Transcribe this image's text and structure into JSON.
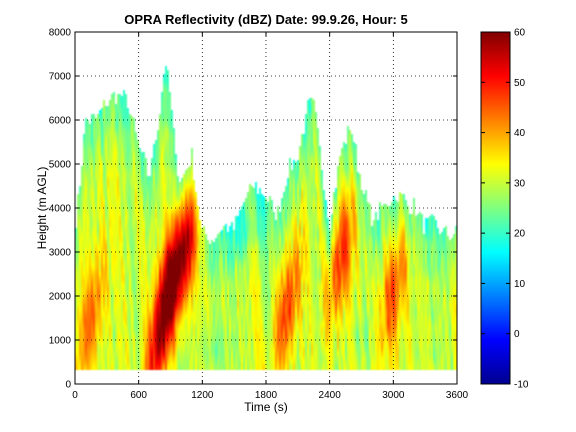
{
  "chart_data": {
    "type": "heatmap",
    "title": "OPRA Reflectivity (dBZ)  Date: 99.9.26, Hour: 5",
    "xlabel": "Time (s)",
    "ylabel": "Height (m AGL)",
    "xlim": [
      0,
      3600
    ],
    "ylim": [
      0,
      8000
    ],
    "xticks": [
      "0",
      "600",
      "1200",
      "1800",
      "2400",
      "3000",
      "3600"
    ],
    "xtick_values": [
      0,
      600,
      1200,
      1800,
      2400,
      3000,
      3600
    ],
    "yticks": [
      "0",
      "1000",
      "2000",
      "3000",
      "4000",
      "5000",
      "6000",
      "7000",
      "8000"
    ],
    "ytick_values": [
      0,
      1000,
      2000,
      3000,
      4000,
      5000,
      6000,
      7000,
      8000
    ],
    "grid": true,
    "data_bottom_m": 300,
    "colorbar": {
      "range": [
        -10,
        60
      ],
      "ticks": [
        "-10",
        "0",
        "10",
        "20",
        "30",
        "40",
        "50",
        "60"
      ],
      "tick_values": [
        -10,
        0,
        10,
        20,
        30,
        40,
        50,
        60
      ],
      "colormap": "jet"
    },
    "echo_tops": {
      "t": [
        0,
        100,
        200,
        300,
        400,
        500,
        600,
        700,
        800,
        850,
        900,
        950,
        1000,
        1100,
        1200,
        1300,
        1400,
        1500,
        1600,
        1700,
        1800,
        1900,
        2000,
        2100,
        2200,
        2250,
        2300,
        2400,
        2500,
        2600,
        2700,
        2800,
        2900,
        3000,
        3100,
        3200,
        3300,
        3400,
        3500,
        3600
      ],
      "top_m": [
        3400,
        6000,
        6000,
        6400,
        6600,
        6400,
        5400,
        4700,
        6200,
        7400,
        6500,
        5200,
        4600,
        5200,
        3400,
        3300,
        3600,
        3500,
        4200,
        4500,
        4300,
        3800,
        4800,
        5200,
        6300,
        6300,
        5500,
        3700,
        5200,
        5900,
        4600,
        3700,
        4000,
        4300,
        4200,
        4000,
        3600,
        3600,
        3400,
        3400
      ]
    },
    "reflectivity_cores": [
      {
        "t": 900,
        "height_m": 2500,
        "peak_dbz": 52
      },
      {
        "t": 1050,
        "height_m": 3000,
        "peak_dbz": 50
      },
      {
        "t": 800,
        "height_m": 1000,
        "peak_dbz": 50
      },
      {
        "t": 2000,
        "height_m": 1700,
        "peak_dbz": 47
      },
      {
        "t": 2500,
        "height_m": 2800,
        "peak_dbz": 46
      },
      {
        "t": 3000,
        "height_m": 2100,
        "peak_dbz": 44
      },
      {
        "t": 150,
        "height_m": 1500,
        "peak_dbz": 43
      }
    ],
    "low_reflectivity_regions": [
      {
        "t": 1300,
        "height_m": 800,
        "dbz": 25
      },
      {
        "t": 2700,
        "height_m": 1000,
        "dbz": 26
      },
      {
        "t": 1600,
        "height_m": 3400,
        "dbz": 24
      }
    ]
  }
}
